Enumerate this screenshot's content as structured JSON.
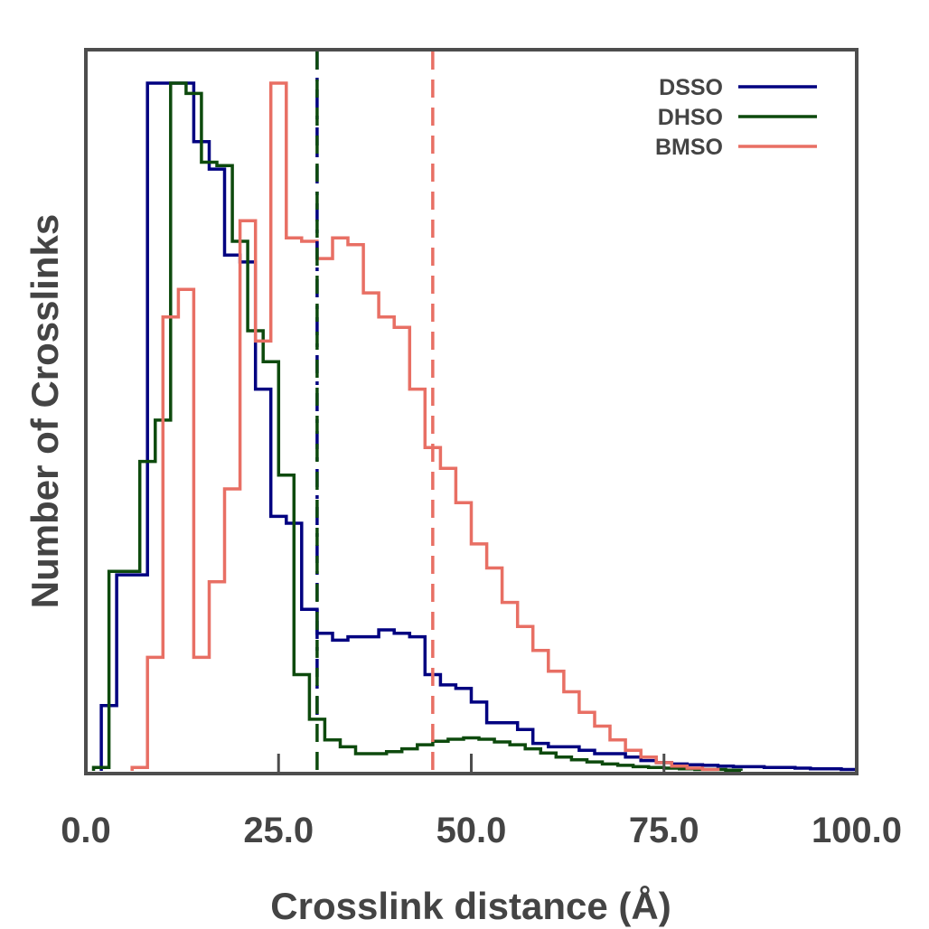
{
  "chart_data": {
    "type": "histogram",
    "xlabel": "Crosslink distance (Å)",
    "ylabel": "Number of Crosslinks",
    "xlim": [
      0,
      100
    ],
    "ylim": [
      0,
      1.0
    ],
    "x_ticks": [
      0,
      25,
      50,
      75,
      100
    ],
    "x_tick_labels": [
      "0.0",
      "25.0",
      "50.0",
      "75.0",
      "100.0"
    ],
    "grid": false,
    "legend_position": "top-right",
    "bin_width": 2,
    "series": [
      {
        "name": "DSSO",
        "color": "#000080",
        "line_style": "solid",
        "bin_start": 2,
        "counts": [
          0.095,
          0.285,
          0.285,
          1.0,
          1.0,
          1.0,
          0.915,
          0.875,
          0.75,
          0.74,
          0.555,
          0.37,
          0.36,
          0.235,
          0.2,
          0.19,
          0.195,
          0.195,
          0.205,
          0.2,
          0.195,
          0.14,
          0.125,
          0.12,
          0.1,
          0.07,
          0.07,
          0.06,
          0.04,
          0.035,
          0.035,
          0.03,
          0.025,
          0.025,
          0.02,
          0.015,
          0.012,
          0.01,
          0.009,
          0.008,
          0.007,
          0.006,
          0.006,
          0.005,
          0.005,
          0.004,
          0.003,
          0.003,
          0.002
        ]
      },
      {
        "name": "DHSO",
        "color": "#0d4a0d",
        "line_style": "solid",
        "bin_start": 1,
        "counts": [
          0.005,
          0.29,
          0.29,
          0.45,
          0.51,
          1.0,
          0.985,
          0.885,
          0.88,
          0.77,
          0.64,
          0.595,
          0.43,
          0.14,
          0.075,
          0.045,
          0.035,
          0.025,
          0.025,
          0.028,
          0.032,
          0.038,
          0.043,
          0.046,
          0.048,
          0.046,
          0.042,
          0.038,
          0.032,
          0.026,
          0.02,
          0.016,
          0.013,
          0.01,
          0.008,
          0.006,
          0.005,
          0.004,
          0.003,
          0.002,
          0.002,
          0.001
        ]
      },
      {
        "name": "BMSO",
        "color": "#e86f64",
        "line_style": "solid",
        "bin_start": 6,
        "counts": [
          0.005,
          0.165,
          0.66,
          0.7,
          0.165,
          0.275,
          0.41,
          0.8,
          0.625,
          1.0,
          0.775,
          0.77,
          0.745,
          0.775,
          0.765,
          0.695,
          0.66,
          0.645,
          0.555,
          0.47,
          0.44,
          0.39,
          0.33,
          0.295,
          0.245,
          0.21,
          0.175,
          0.145,
          0.115,
          0.085,
          0.065,
          0.045,
          0.03,
          0.02,
          0.012,
          0.007,
          0.004,
          0.002
        ]
      }
    ],
    "vertical_lines": [
      {
        "x": 30,
        "color": "#000080",
        "style": "dashdot"
      },
      {
        "x": 30,
        "color": "#0d4a0d",
        "style": "dashed"
      },
      {
        "x": 45,
        "color": "#e86f64",
        "style": "dashed"
      }
    ]
  }
}
